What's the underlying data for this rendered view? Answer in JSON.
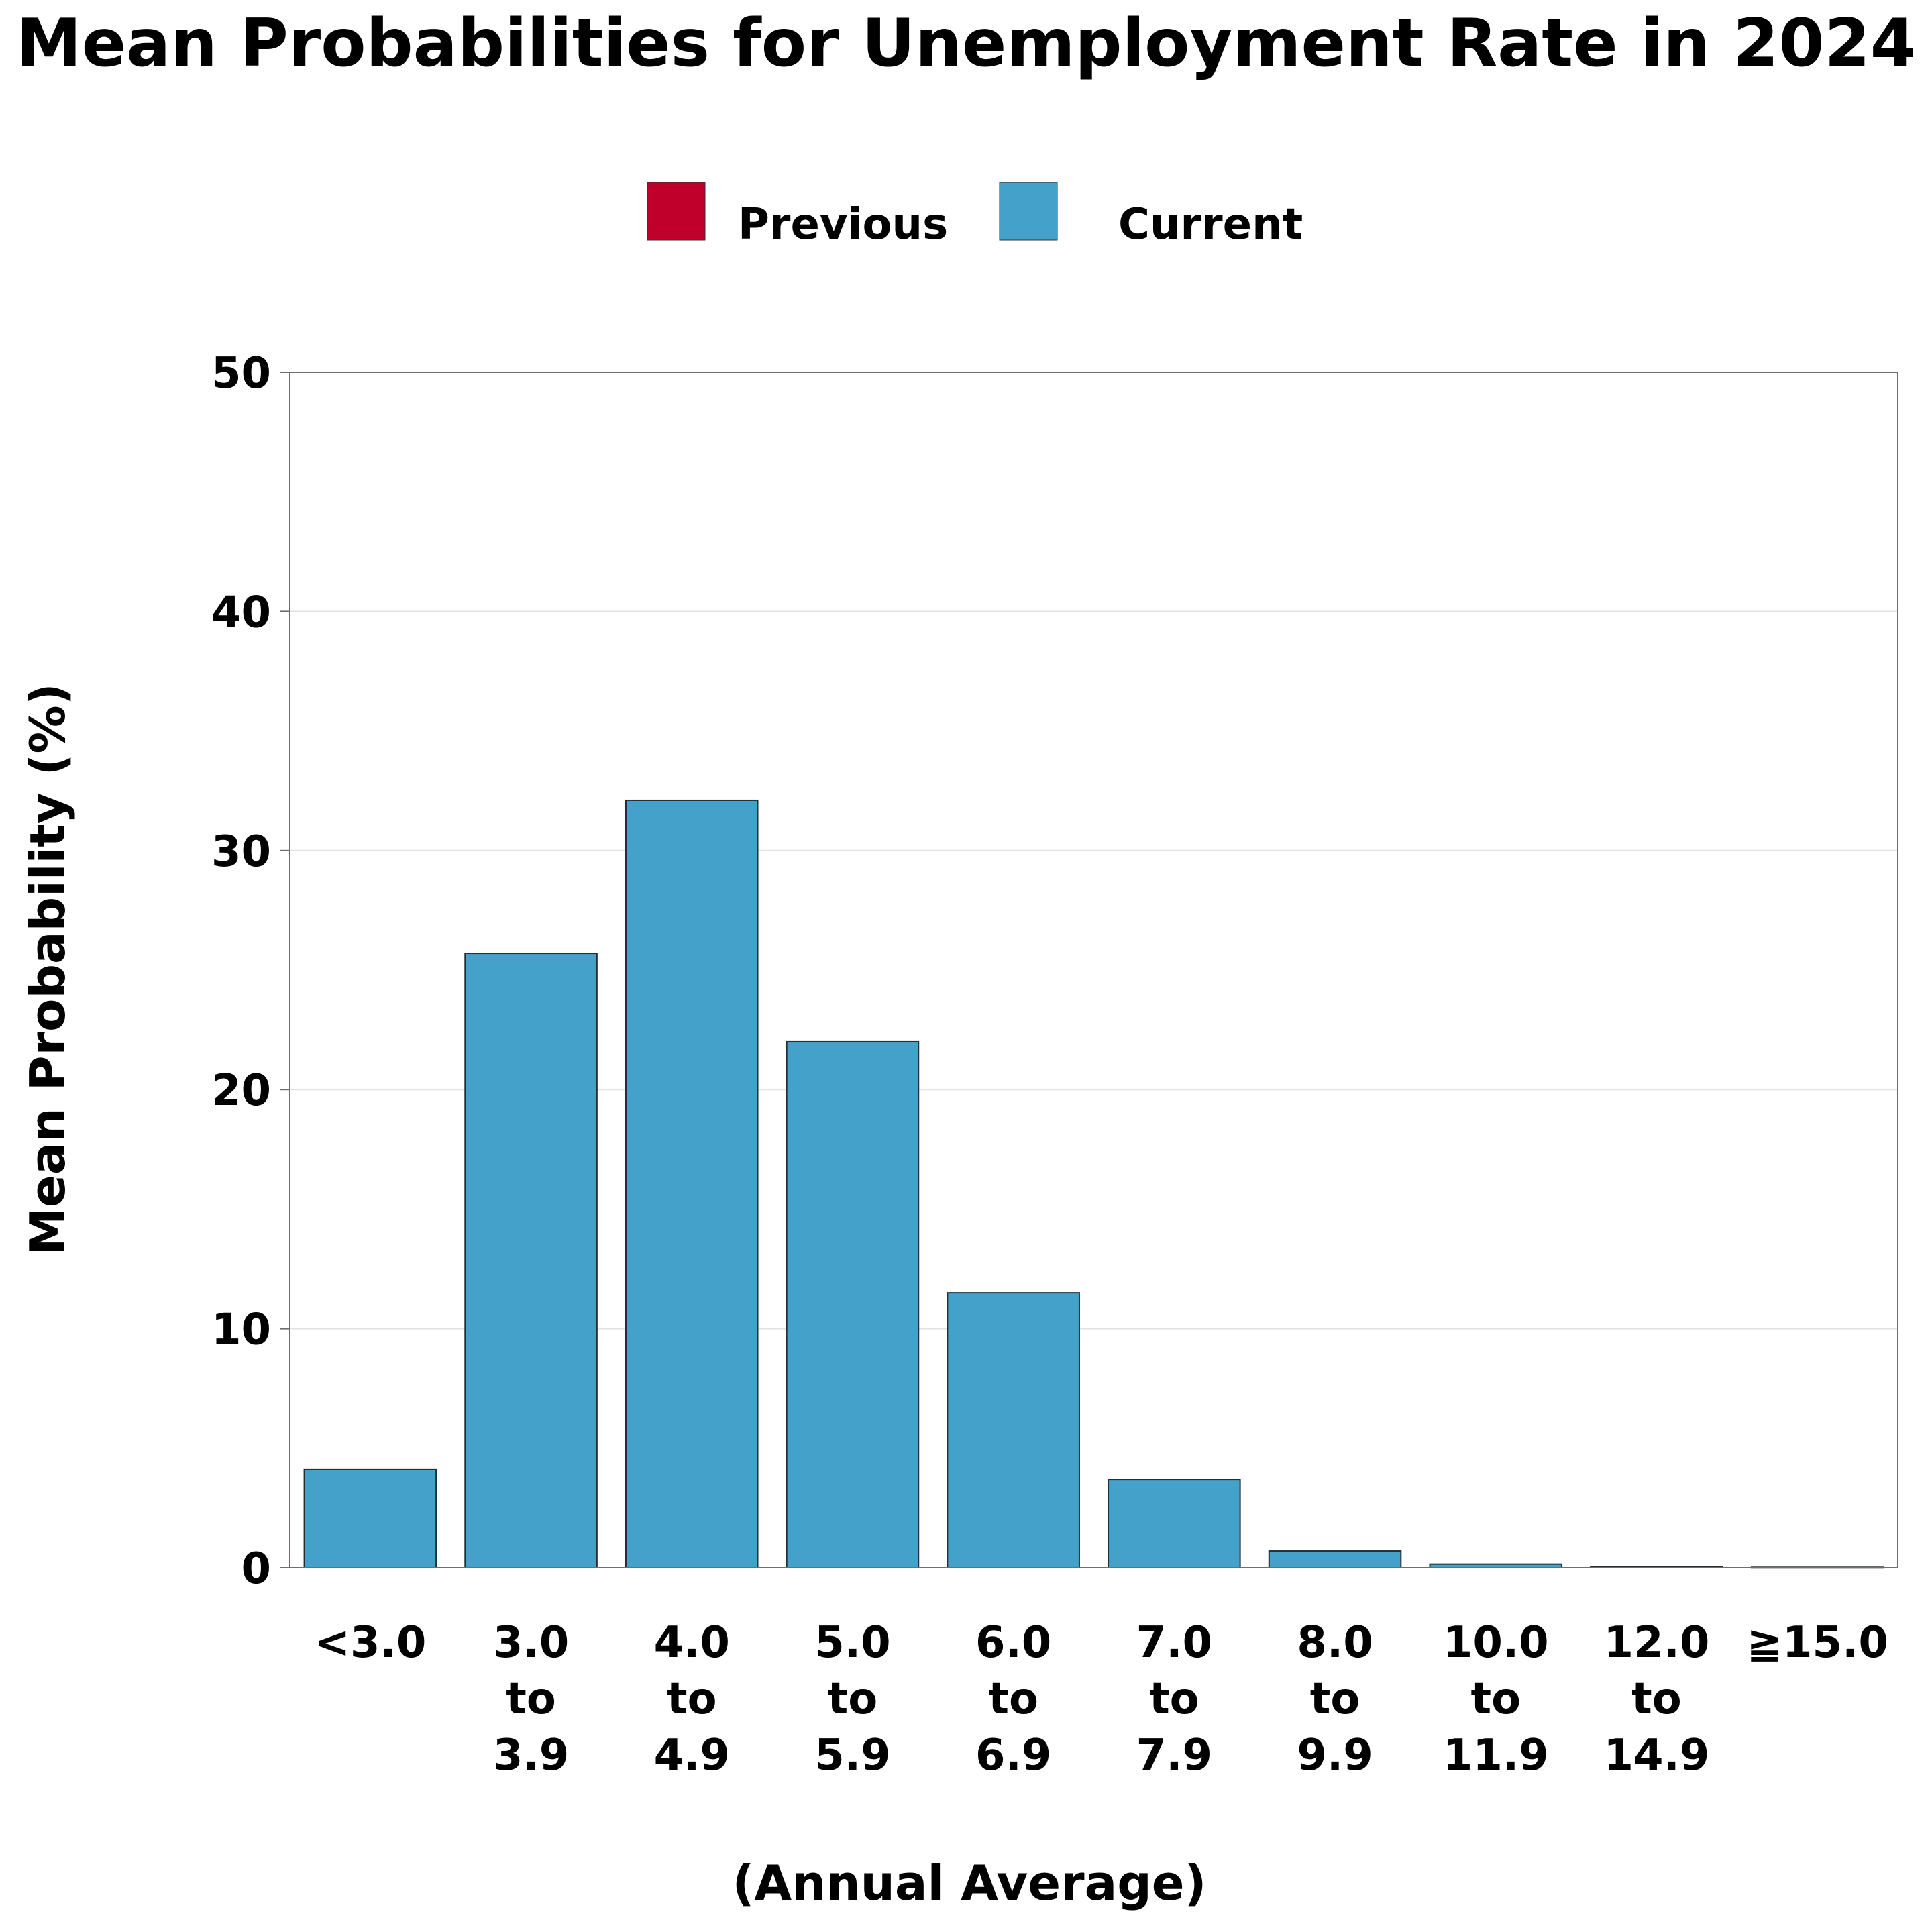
{
  "chart_data": {
    "type": "bar",
    "title": "Mean Probabilities for Unemployment Rate in 2024",
    "xlabel": "(Annual Average)",
    "ylabel": "Mean Probability (%)",
    "ylim": [
      0,
      50
    ],
    "yticks": [
      0,
      10,
      20,
      30,
      40,
      50
    ],
    "grid": true,
    "legend_position": "top-center",
    "categories": [
      [
        "<3.0"
      ],
      [
        "3.0",
        "to",
        "3.9"
      ],
      [
        "4.0",
        "to",
        "4.9"
      ],
      [
        "5.0",
        "to",
        "5.9"
      ],
      [
        "6.0",
        "to",
        "6.9"
      ],
      [
        "7.0",
        "to",
        "7.9"
      ],
      [
        "8.0",
        "to",
        "9.9"
      ],
      [
        "10.0",
        "to",
        "11.9"
      ],
      [
        "12.0",
        "to",
        "14.9"
      ],
      [
        "≧15.0"
      ]
    ],
    "legend": [
      {
        "name": "Previous",
        "color": "#c0002a"
      },
      {
        "name": "Current",
        "color": "#44a2ca"
      }
    ],
    "series": [
      {
        "name": "Current",
        "color": "#44a2ca",
        "values": [
          4.1,
          25.7,
          32.1,
          22.0,
          11.5,
          3.7,
          0.7,
          0.15,
          0.05,
          0.02
        ]
      }
    ]
  }
}
